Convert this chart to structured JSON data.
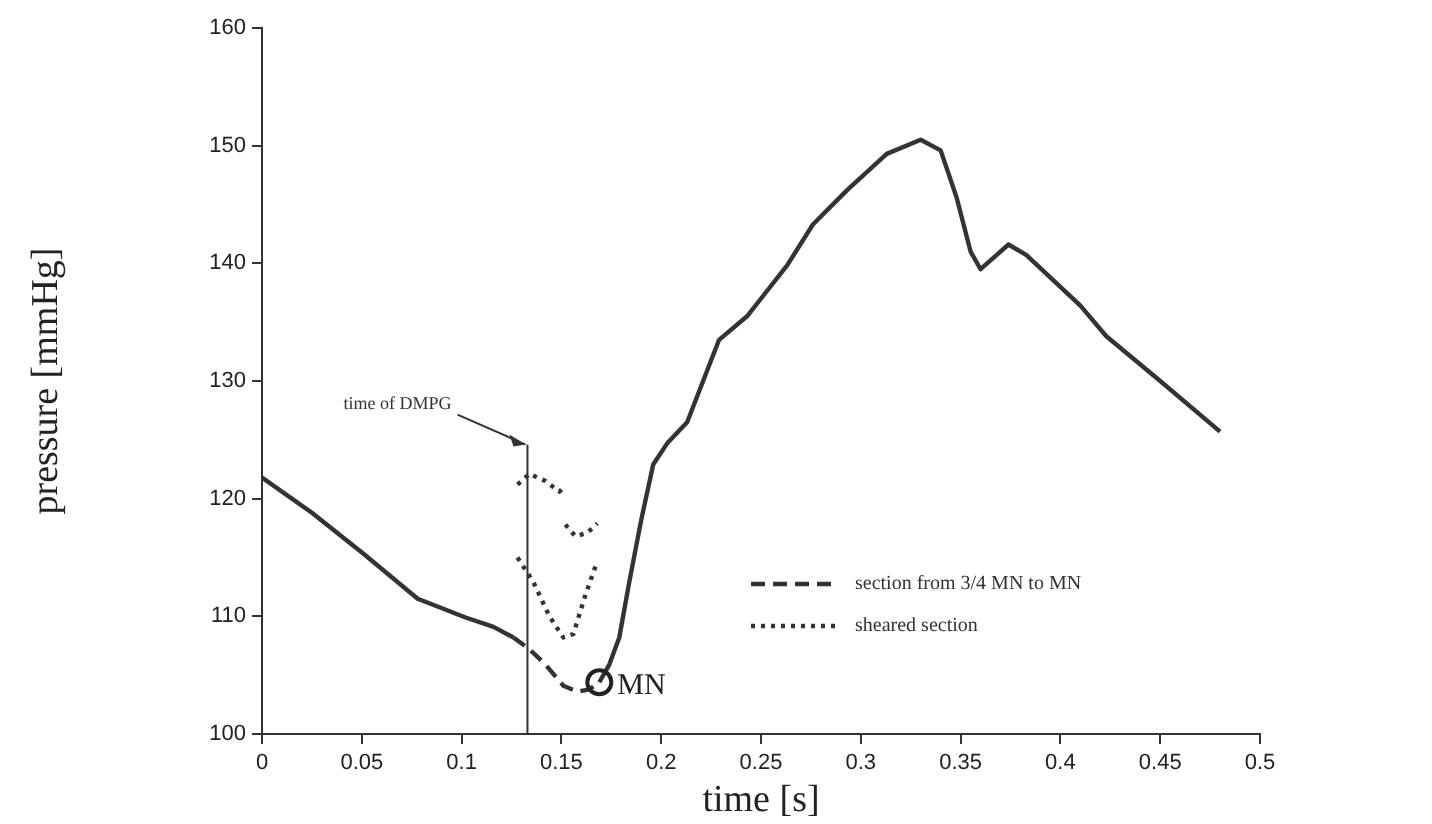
{
  "chart_data": {
    "type": "line",
    "xlabel": "time [s]",
    "ylabel": "pressure [mmHg]",
    "xlim": [
      0,
      0.5
    ],
    "xticks": [
      0,
      0.05,
      0.1,
      0.15,
      0.2,
      0.25,
      0.3,
      0.35,
      0.4,
      0.45,
      0.5
    ],
    "ylim": [
      100,
      160
    ],
    "yticks": [
      100,
      110,
      120,
      130,
      140,
      150,
      160
    ],
    "grid": false,
    "legend": "bottom right",
    "marker": "none",
    "series": [
      {
        "color": "#333333",
        "line_style": "solid",
        "x": [
          0,
          0.025,
          0.051,
          0.078,
          0.102,
          0.116,
          0.126
        ],
        "values": [
          121.8,
          118.8,
          115.3,
          111.5,
          109.9,
          109.1,
          108.2
        ]
      },
      {
        "color": "#333333",
        "line_style": "solid",
        "x": [
          0.169,
          0.174,
          0.179,
          0.184,
          0.19,
          0.196,
          0.203,
          0.213,
          0.229,
          0.243,
          0.263,
          0.276,
          0.293,
          0.313,
          0.33,
          0.34,
          0.348,
          0.355,
          0.36,
          0.374,
          0.383,
          0.41,
          0.423,
          0.45,
          0.48
        ],
        "values": [
          104.4,
          105.9,
          108.2,
          112.9,
          118.2,
          122.9,
          124.7,
          126.5,
          133.5,
          135.5,
          139.8,
          143.3,
          146.2,
          149.3,
          150.5,
          149.6,
          145.6,
          141.0,
          139.5,
          141.6,
          140.7,
          136.4,
          133.8,
          130.0,
          125.7
        ]
      },
      {
        "name": "section from 3/4 MN to MN",
        "color": "#333333",
        "line_style": "dashed",
        "x": [
          0.126,
          0.134,
          0.142,
          0.151,
          0.158,
          0.164,
          0.169
        ],
        "values": [
          108.2,
          107.2,
          105.9,
          104.1,
          103.6,
          103.8,
          104.4
        ]
      },
      {
        "name": "sheared section",
        "color": "#333333",
        "line_style": "dotted",
        "x": [
          0.128,
          0.136,
          0.144,
          0.151,
          0.156,
          0.162,
          0.168
        ],
        "values": [
          115.0,
          112.9,
          110.0,
          108.2,
          108.5,
          111.8,
          114.7
        ]
      },
      {
        "color": "#333333",
        "line_style": "dotted",
        "x": [
          0.128,
          0.134,
          0.142,
          0.149,
          0.152
        ],
        "values": [
          121.2,
          122.1,
          121.5,
          120.6,
          121.1
        ]
      },
      {
        "color": "#333333",
        "line_style": "dotted",
        "x": [
          0.152,
          0.157,
          0.163,
          0.168
        ],
        "values": [
          117.8,
          116.8,
          117.1,
          117.9
        ]
      }
    ],
    "ref_lines": [
      {
        "axis": "x",
        "value": 0.133,
        "label": "time of DMPG"
      }
    ],
    "annotations": [
      {
        "text": "MN",
        "x": 0.169,
        "y": 104.4
      }
    ]
  }
}
